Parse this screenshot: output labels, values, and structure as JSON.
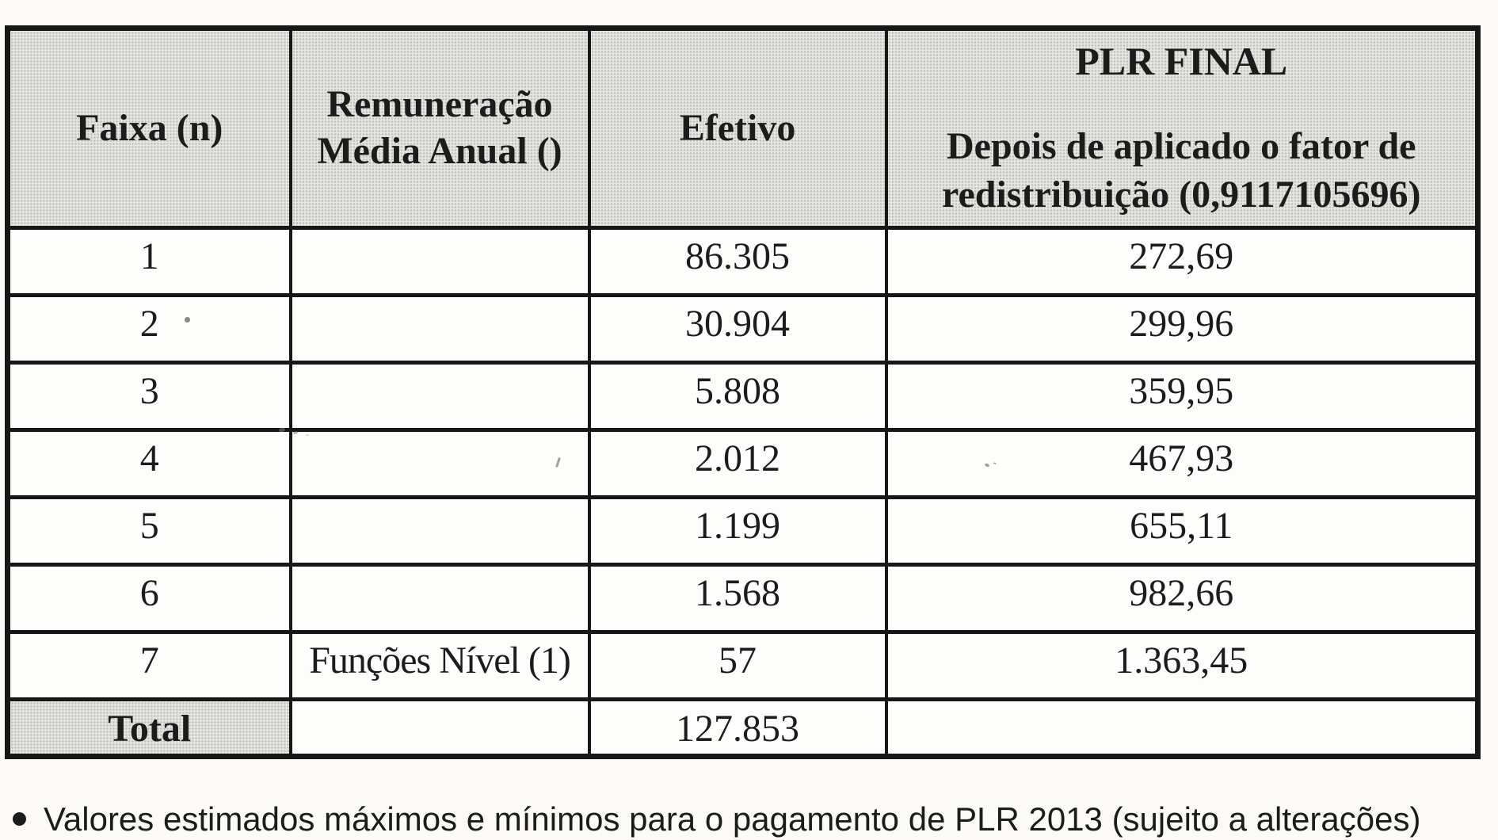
{
  "table": {
    "columns": [
      {
        "label": "Faixa (n)"
      },
      {
        "label": "Remuneração Média Anual ()"
      },
      {
        "label": "Efetivo"
      },
      {
        "title": "PLR FINAL",
        "label": "Depois de aplicado o fator de redistribuição (0,9117105696)"
      }
    ],
    "rows": [
      {
        "faixa": "1",
        "remuneracao": "",
        "efetivo": "86.305",
        "plr": "272,69"
      },
      {
        "faixa": "2",
        "remuneracao": "",
        "efetivo": "30.904",
        "plr": "299,96"
      },
      {
        "faixa": "3",
        "remuneracao": "",
        "efetivo": "5.808",
        "plr": "359,95"
      },
      {
        "faixa": "4",
        "remuneracao": "",
        "efetivo": "2.012",
        "plr": "467,93"
      },
      {
        "faixa": "5",
        "remuneracao": "",
        "efetivo": "1.199",
        "plr": "655,11"
      },
      {
        "faixa": "6",
        "remuneracao": "",
        "efetivo": "1.568",
        "plr": "982,66"
      },
      {
        "faixa": "7",
        "remuneracao": "Funções Nível (1)",
        "efetivo": "57",
        "plr": "1.363,45"
      }
    ],
    "total": {
      "faixa": "Total",
      "remuneracao": "",
      "efetivo": "127.853",
      "plr": ""
    }
  },
  "footnote": {
    "text": "Valores estimados máximos e mínimos para o pagamento de PLR 2013 (sujeito a alterações)"
  },
  "colors": {
    "page_bg": "#fbfaf6",
    "paper_bg": "#fdfdfb",
    "border": "#171717",
    "text": "#1c1c1c",
    "header_bg": "#e6e6e2"
  }
}
